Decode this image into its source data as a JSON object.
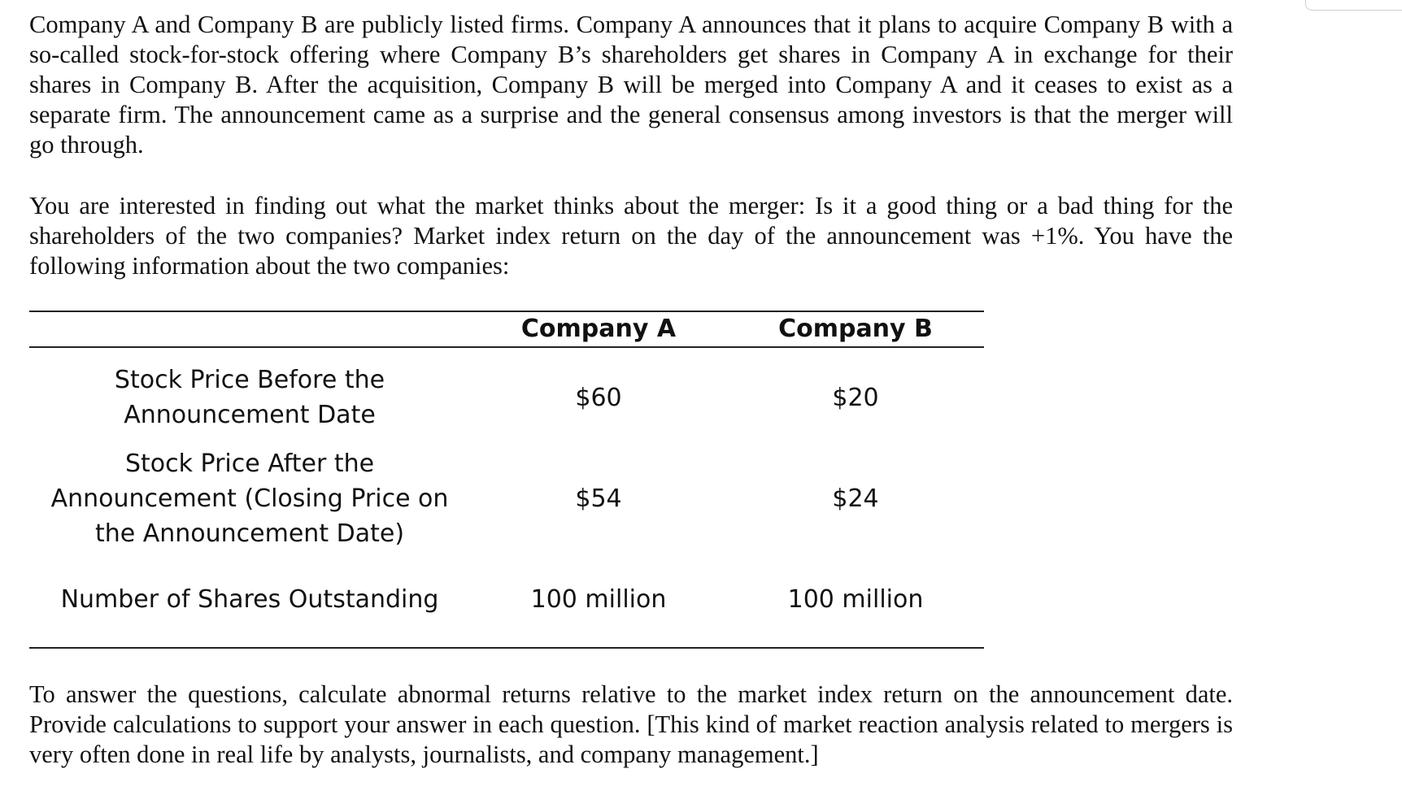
{
  "paragraphs": {
    "intro": "Company A and Company B are publicly listed firms. Company A announces that it plans to acquire Company B with a so-called stock-for-stock offering where Company B’s shareholders get shares in Company A in exchange for their shares in Company B. After the acquisition, Company B will be merged into Company A and it ceases to exist as a separate firm.  The announcement came as a surprise and the general consensus among investors is that the merger will go through.",
    "question": "You are interested in finding out what the market thinks about the merger: Is it a good thing or a bad thing for the shareholders of the two companies? Market index return on the day of the announcement was +1%. You have the following information about the two companies:",
    "instructions": "To answer the questions, calculate abnormal returns relative to the market index return on the announcement date. Provide calculations to support your answer in each question. [This kind of market reaction analysis related to mergers is very often done in real life by analysts, journalists, and company management.]"
  },
  "table": {
    "headers": [
      "Company A",
      "Company B"
    ],
    "rows": [
      {
        "label": "Stock Price Before the\nAnnouncement Date",
        "company_a": "$60",
        "company_b": "$20"
      },
      {
        "label": "Stock Price After the\nAnnouncement (Closing Price on\nthe Announcement Date)",
        "company_a": "$54",
        "company_b": "$24"
      },
      {
        "label": "Number of Shares Outstanding",
        "company_a": "100 million",
        "company_b": "100 million"
      }
    ]
  }
}
